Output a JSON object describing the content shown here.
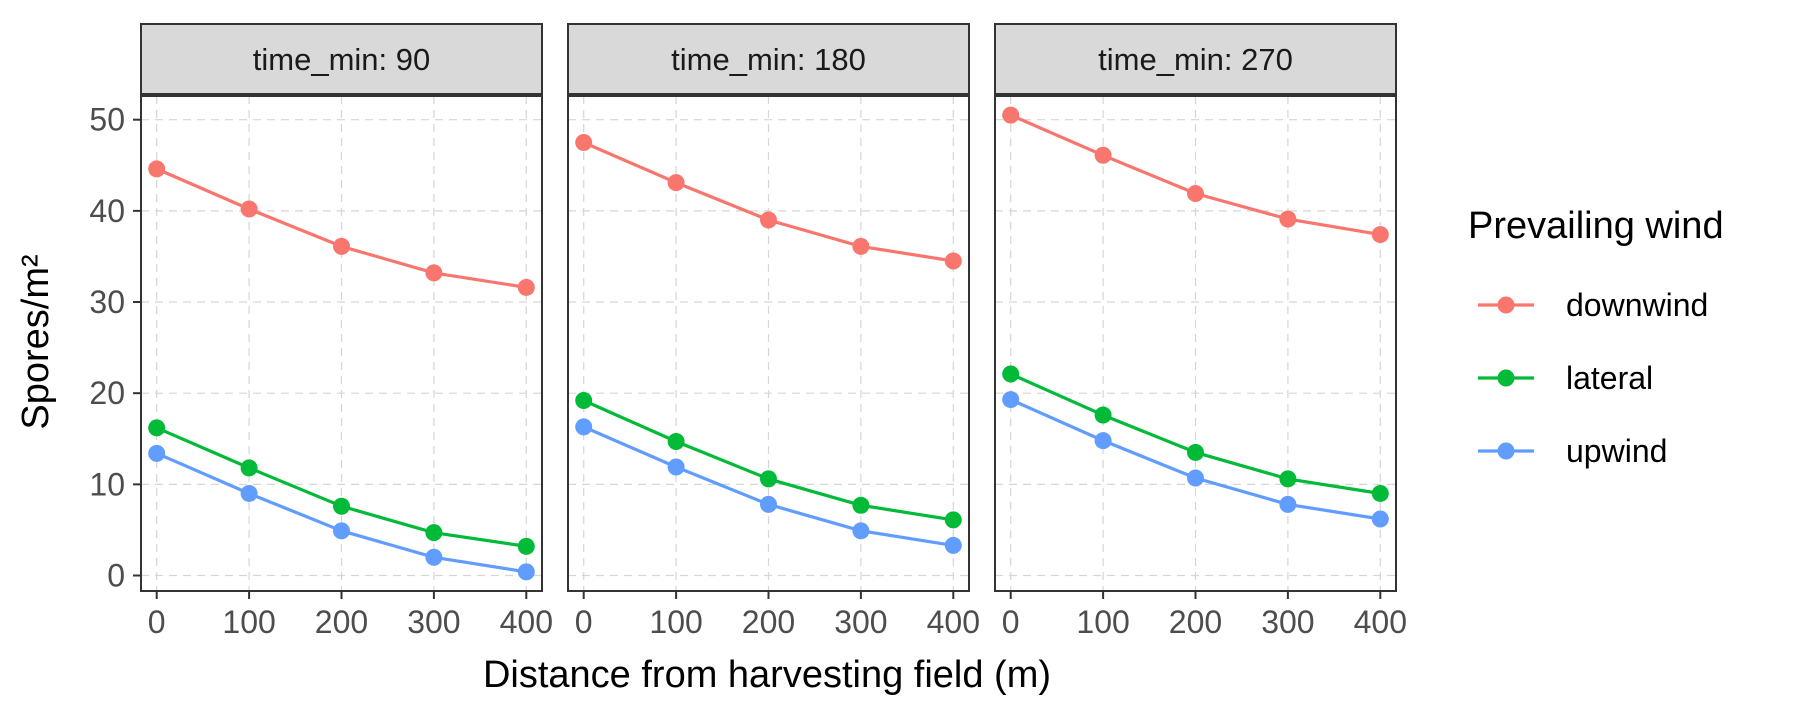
{
  "chart_data": {
    "type": "line",
    "facet_label": "time_min",
    "facets": [
      {
        "label": "time_min: 90",
        "series": [
          {
            "name": "downwind",
            "values": [
              44.6,
              40.2,
              36.1,
              33.2,
              31.6
            ]
          },
          {
            "name": "lateral",
            "values": [
              16.2,
              11.8,
              7.6,
              4.7,
              3.2
            ]
          },
          {
            "name": "upwind",
            "values": [
              13.4,
              9.0,
              4.9,
              2.0,
              0.4
            ]
          }
        ]
      },
      {
        "label": "time_min: 180",
        "series": [
          {
            "name": "downwind",
            "values": [
              47.5,
              43.1,
              39.0,
              36.1,
              34.5
            ]
          },
          {
            "name": "lateral",
            "values": [
              19.2,
              14.7,
              10.6,
              7.7,
              6.1
            ]
          },
          {
            "name": "upwind",
            "values": [
              16.3,
              11.9,
              7.8,
              4.9,
              3.3
            ]
          }
        ]
      },
      {
        "label": "time_min: 270",
        "series": [
          {
            "name": "downwind",
            "values": [
              50.5,
              46.1,
              41.9,
              39.1,
              37.4
            ]
          },
          {
            "name": "lateral",
            "values": [
              22.1,
              17.6,
              13.5,
              10.6,
              9.0
            ]
          },
          {
            "name": "upwind",
            "values": [
              19.3,
              14.8,
              10.7,
              7.8,
              6.2
            ]
          }
        ]
      }
    ],
    "x": [
      0,
      100,
      200,
      300,
      400
    ],
    "x_ticks": [
      "0",
      "100",
      "200",
      "300",
      "400"
    ],
    "y_ticks": [
      "0",
      "10",
      "20",
      "30",
      "40",
      "50"
    ],
    "xlabel": "Distance from harvesting field (m)",
    "ylabel": "Spores/m²",
    "xlim": [
      -17,
      417
    ],
    "ylim": [
      -1.7,
      52.6
    ],
    "grid": "dashed",
    "legend": {
      "title": "Prevailing wind",
      "position": "right",
      "entries": [
        "downwind",
        "lateral",
        "upwind"
      ]
    },
    "colors": {
      "downwind": "#F8766D",
      "lateral": "#00BA38",
      "upwind": "#619CFF"
    }
  }
}
